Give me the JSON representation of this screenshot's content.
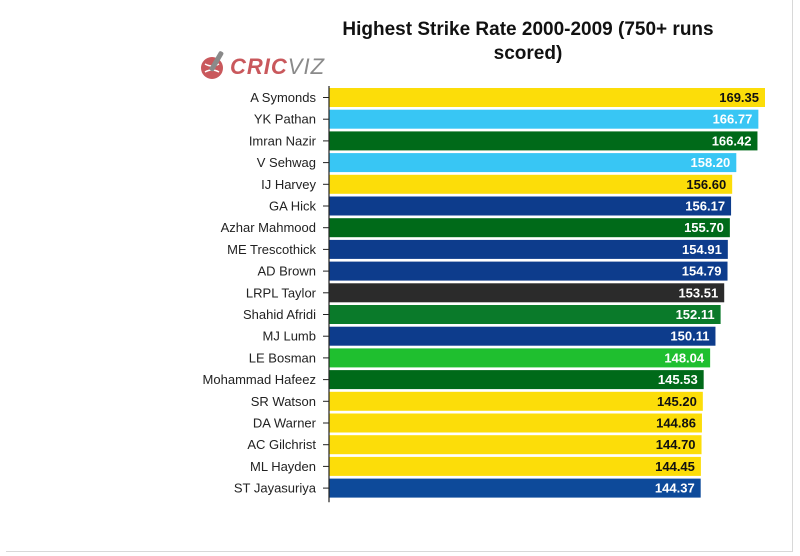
{
  "chart_data": {
    "type": "bar",
    "orientation": "horizontal",
    "title": "Highest Strike Rate 2000-2009 (750+ runs scored)",
    "xlabel": "",
    "ylabel": "",
    "xlim": [
      0,
      169.35
    ],
    "grid": false,
    "legend": "none",
    "categories": [
      "A Symonds",
      "YK Pathan",
      "Imran Nazir",
      "V Sehwag",
      "IJ Harvey",
      "GA Hick",
      "Azhar Mahmood",
      "ME Trescothick",
      "AD Brown",
      "LRPL Taylor",
      "Shahid Afridi",
      "MJ Lumb",
      "LE Bosman",
      "Mohammad Hafeez",
      "SR Watson",
      "DA Warner",
      "AC Gilchrist",
      "ML Hayden",
      "ST Jayasuriya"
    ],
    "values": [
      169.35,
      166.77,
      166.42,
      158.2,
      156.6,
      156.17,
      155.7,
      154.91,
      154.79,
      153.51,
      152.11,
      150.11,
      148.04,
      145.53,
      145.2,
      144.86,
      144.7,
      144.45,
      144.37
    ],
    "value_labels": [
      "169.35",
      "166.77",
      "166.42",
      "158.20",
      "156.60",
      "156.17",
      "155.70",
      "154.91",
      "154.79",
      "153.51",
      "152.11",
      "150.11",
      "148.04",
      "145.53",
      "145.20",
      "144.86",
      "144.70",
      "144.45",
      "144.37"
    ],
    "colors": [
      "#fcdd09",
      "#38c6f4",
      "#006a19",
      "#38c6f4",
      "#fcdd09",
      "#0d3c8c",
      "#006a19",
      "#0d3c8c",
      "#0d3c8c",
      "#2b2b2b",
      "#0a7a2a",
      "#0d3c8c",
      "#1fbf2f",
      "#006a19",
      "#fcdd09",
      "#fcdd09",
      "#fcdd09",
      "#fcdd09",
      "#0d4a9a"
    ],
    "label_colors": [
      "#111111",
      "#ffffff",
      "#ffffff",
      "#ffffff",
      "#111111",
      "#ffffff",
      "#ffffff",
      "#ffffff",
      "#ffffff",
      "#ffffff",
      "#ffffff",
      "#ffffff",
      "#ffffff",
      "#ffffff",
      "#111111",
      "#111111",
      "#111111",
      "#111111",
      "#ffffff"
    ]
  },
  "logo": {
    "brand_left": "CRIC",
    "brand_right": "VIZ",
    "icon": "cricket-bat-ball-icon"
  }
}
